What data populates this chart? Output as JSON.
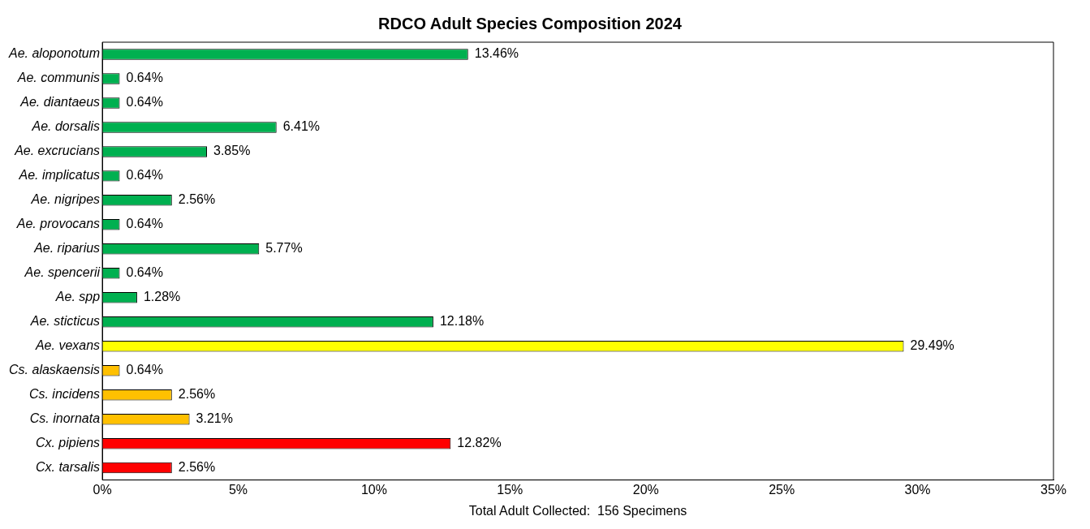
{
  "chart_data": {
    "type": "bar",
    "orientation": "horizontal",
    "title": "RDCO Adult Species Composition 2024",
    "xlabel": "Total Adult Collected:  156 Specimens",
    "categories": [
      "Ae. aloponotum",
      "Ae. communis",
      "Ae. diantaeus",
      "Ae. dorsalis",
      "Ae. excrucians",
      "Ae. implicatus",
      "Ae. nigripes",
      "Ae. provocans",
      "Ae. riparius",
      "Ae. spencerii",
      "Ae. spp",
      "Ae. sticticus",
      "Ae. vexans",
      "Cs. alaskaensis",
      "Cs. incidens",
      "Cs. inornata",
      "Cx. pipiens",
      "Cx. tarsalis"
    ],
    "values": [
      13.46,
      0.64,
      0.64,
      6.41,
      3.85,
      0.64,
      2.56,
      0.64,
      5.77,
      0.64,
      1.28,
      12.18,
      29.49,
      0.64,
      2.56,
      3.21,
      12.82,
      2.56
    ],
    "value_labels": [
      "13.46%",
      "0.64%",
      "0.64%",
      "6.41%",
      "3.85%",
      "0.64%",
      "2.56%",
      "0.64%",
      "5.77%",
      "0.64%",
      "1.28%",
      "12.18%",
      "29.49%",
      "0.64%",
      "2.56%",
      "3.21%",
      "12.82%",
      "2.56%"
    ],
    "colors": [
      "#00b050",
      "#00b050",
      "#00b050",
      "#00b050",
      "#00b050",
      "#00b050",
      "#00b050",
      "#00b050",
      "#00b050",
      "#00b050",
      "#00b050",
      "#00b050",
      "#ffff00",
      "#ffc000",
      "#ffc000",
      "#ffc000",
      "#ff0000",
      "#ff0000"
    ],
    "xlim": [
      0,
      35
    ],
    "xticks": [
      {
        "value": 0,
        "label": "0%"
      },
      {
        "value": 5,
        "label": "5%"
      },
      {
        "value": 10,
        "label": "10%"
      },
      {
        "value": 15,
        "label": "15%"
      },
      {
        "value": 20,
        "label": "20%"
      },
      {
        "value": 25,
        "label": "25%"
      },
      {
        "value": 30,
        "label": "30%"
      },
      {
        "value": 35,
        "label": "35%"
      }
    ],
    "grid": false,
    "legend": false
  }
}
